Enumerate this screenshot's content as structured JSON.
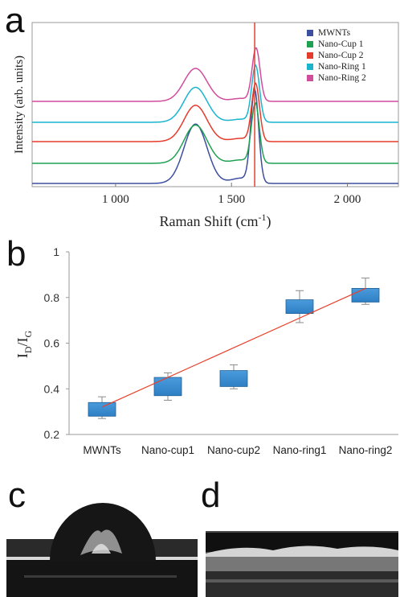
{
  "panels": {
    "a": "a",
    "b": "b",
    "c": "c",
    "d": "d"
  },
  "chart_data": [
    {
      "type": "line",
      "xlabel": "Raman Shift (cm",
      "xlabel_sup": "-1",
      "xlabel_end": ")",
      "ylabel": "Intensity (arb. units)",
      "xlim": [
        640,
        2220
      ],
      "xticks": [
        1000,
        1500,
        2000
      ],
      "xtick_labels": [
        "1 000",
        "1 500",
        "2 000"
      ],
      "reference_line_x": 1600,
      "reference_line_color": "#e8402a",
      "peaks": {
        "D": {
          "center": 1345,
          "width": 70
        },
        "G": {
          "center": 1600,
          "width": 24
        }
      },
      "legend_position": "top-right",
      "series": [
        {
          "name": "MWNTs",
          "color": "#3c4ea0",
          "baseline": 0,
          "D": 90,
          "G": 140,
          "G_shift": 0
        },
        {
          "name": "Nano-Cup 1",
          "color": "#1fa152",
          "baseline": 25,
          "D": 58,
          "G": 90,
          "G_shift": 3
        },
        {
          "name": "Nano-Cup 2",
          "color": "#e53b2c",
          "baseline": 52,
          "D": 55,
          "G": 87,
          "G_shift": 4
        },
        {
          "name": "Nano-Ring 1",
          "color": "#1ab4cf",
          "baseline": 76,
          "D": 53,
          "G": 85,
          "G_shift": 4
        },
        {
          "name": "Nano-Ring 2",
          "color": "#d24c9e",
          "baseline": 102,
          "D": 50,
          "G": 80,
          "G_shift": 6
        }
      ]
    },
    {
      "type": "box",
      "categories": [
        "MWNTs",
        "Nano-cup1",
        "Nano-cup2",
        "Nano-ring1",
        "Nano-ring2"
      ],
      "ylabel": "I",
      "ylabel_sub1": "D",
      "ylabel_mid": "/I",
      "ylabel_sub2": "G",
      "ylim": [
        0.2,
        1
      ],
      "yticks": [
        0.2,
        0.4,
        0.6,
        0.8,
        1
      ],
      "ytick_labels": [
        "0.2",
        "0.4",
        "0.6",
        "0.8",
        "1"
      ],
      "box_color": "#2e7fc4",
      "boxes": [
        {
          "low": 0.28,
          "high": 0.34,
          "whisker_low": 0.27,
          "whisker_high": 0.365
        },
        {
          "low": 0.37,
          "high": 0.45,
          "whisker_low": 0.35,
          "whisker_high": 0.47
        },
        {
          "low": 0.41,
          "high": 0.48,
          "whisker_low": 0.4,
          "whisker_high": 0.505
        },
        {
          "low": 0.73,
          "high": 0.79,
          "whisker_low": 0.69,
          "whisker_high": 0.83
        },
        {
          "low": 0.78,
          "high": 0.84,
          "whisker_low": 0.77,
          "whisker_high": 0.885
        }
      ],
      "trendline": {
        "start": 0.32,
        "end": 0.84,
        "color": "#e8402a"
      }
    }
  ]
}
